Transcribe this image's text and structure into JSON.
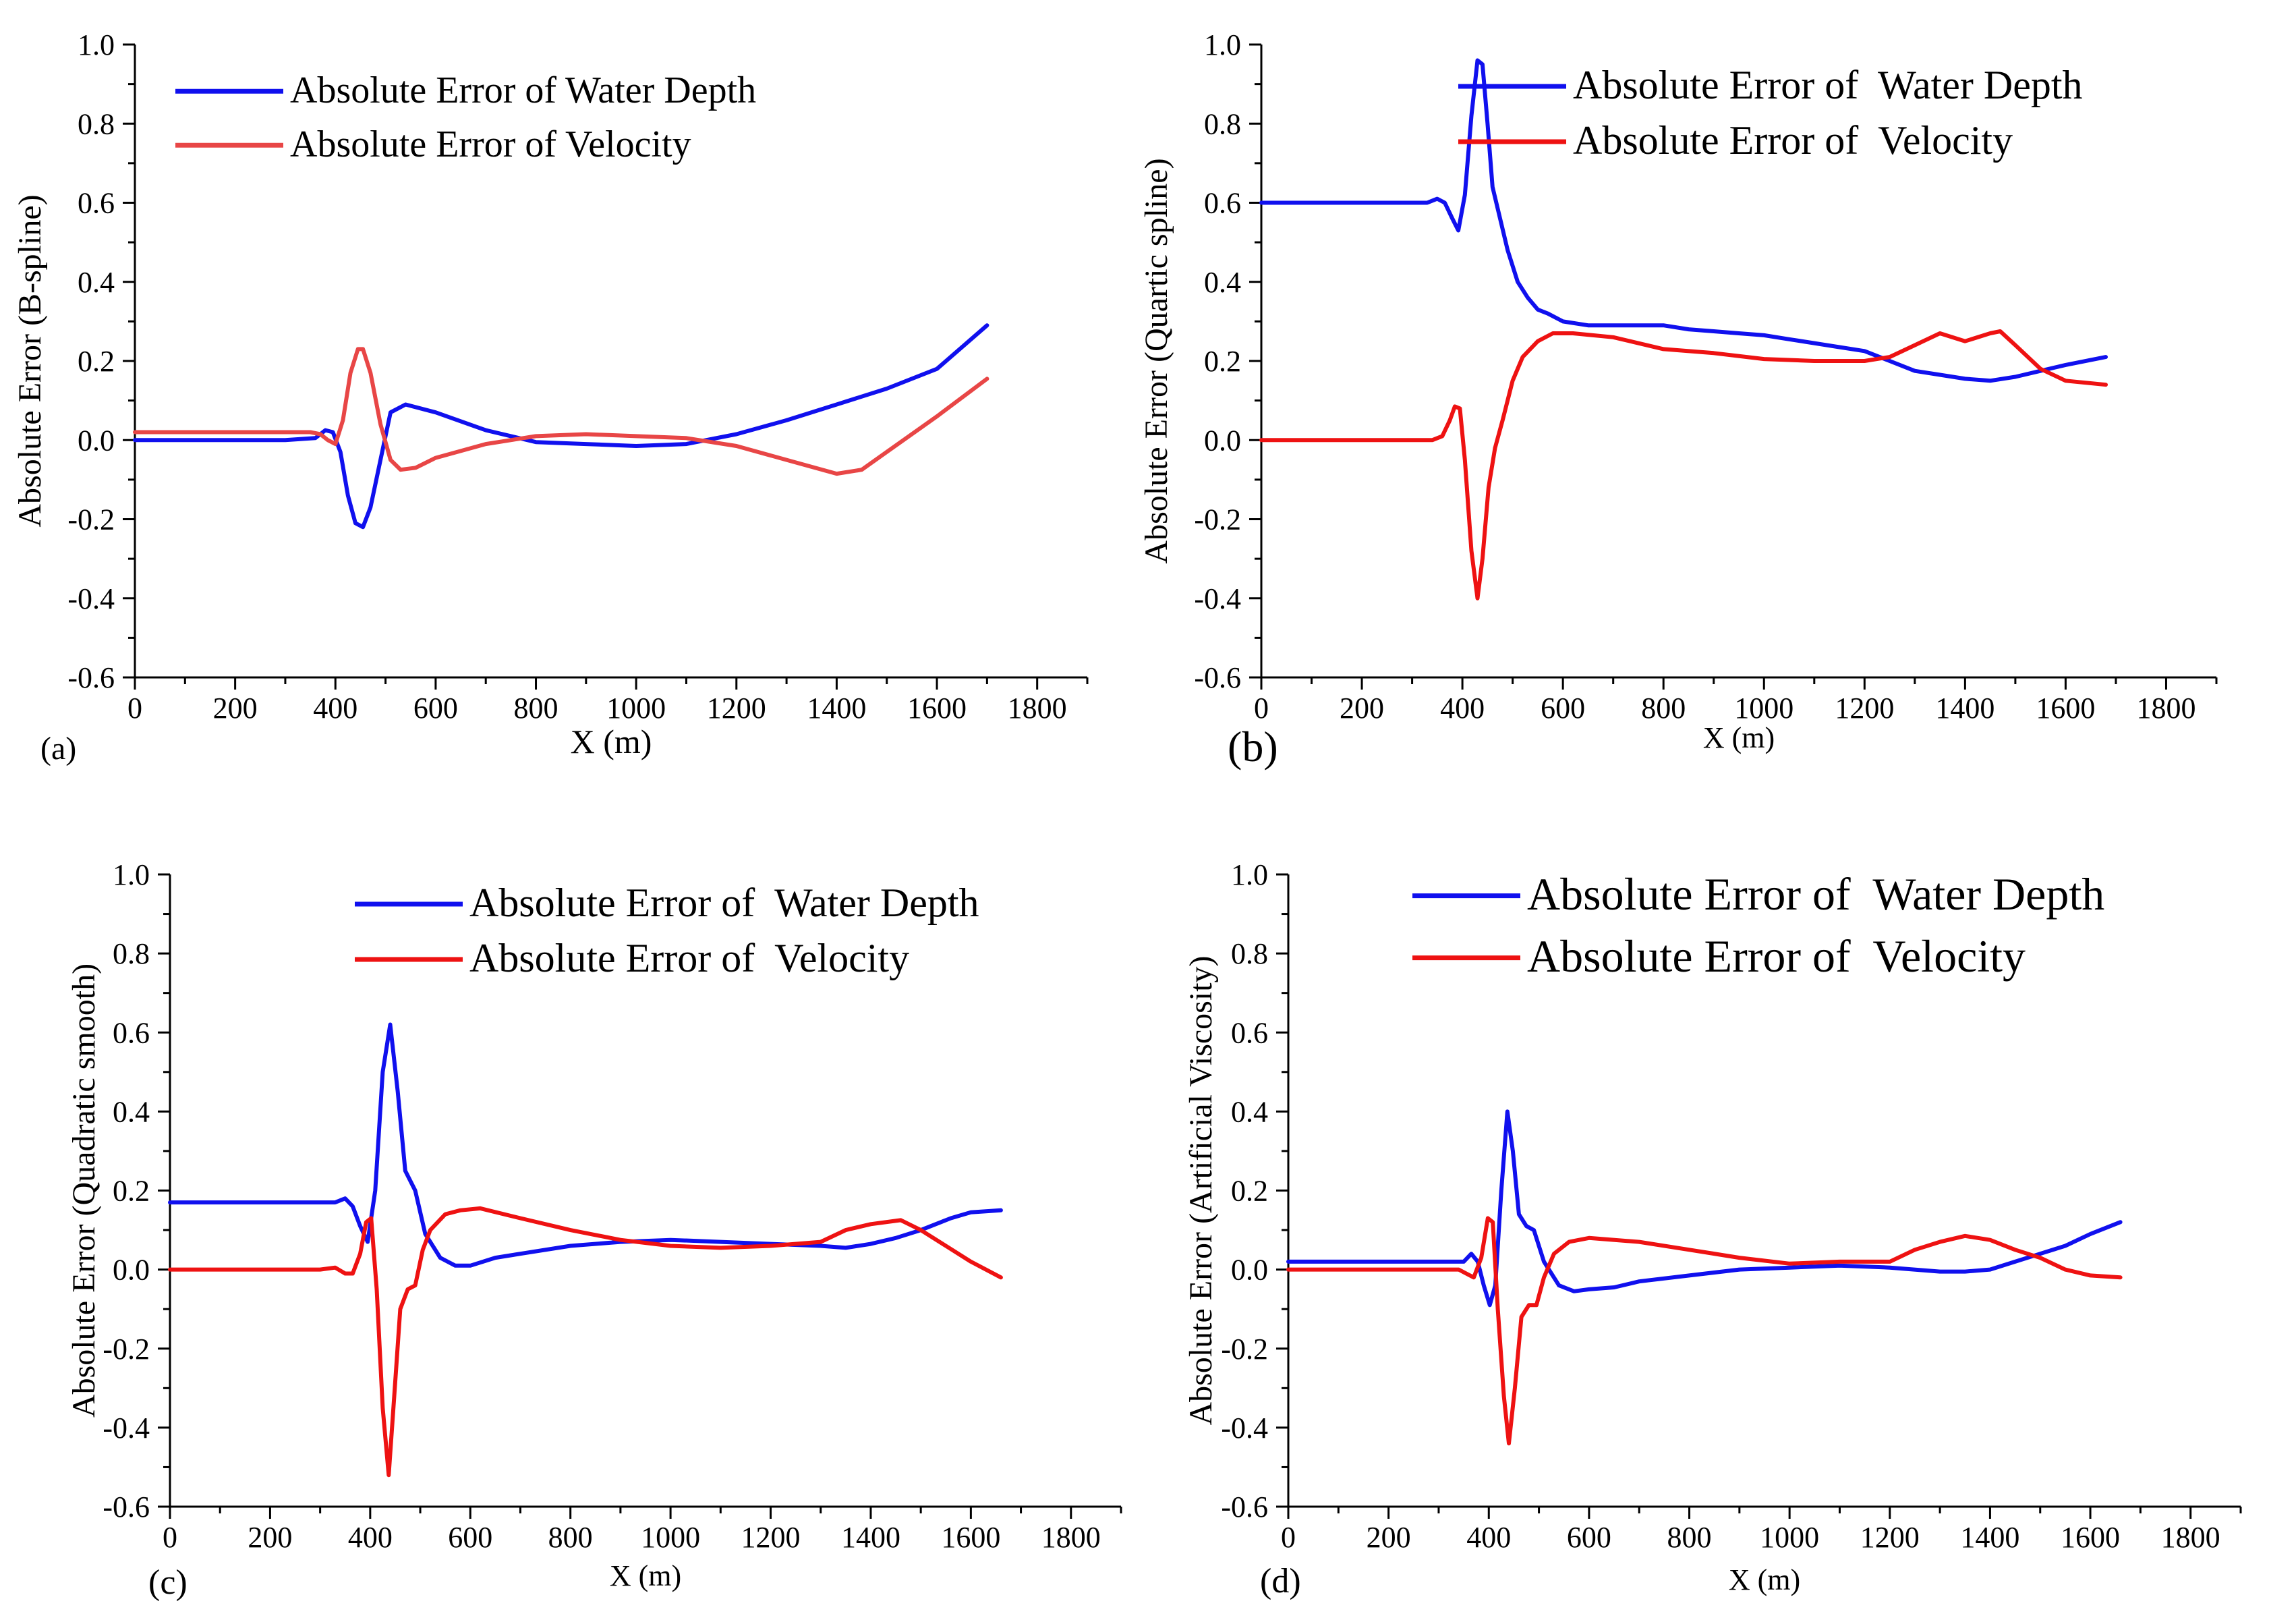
{
  "colors": {
    "blue": "#1010ee",
    "red_a": "#e84646",
    "red": "#ee1212",
    "axis": "#000000"
  },
  "charts": [
    {
      "panel_label": "(a)",
      "chart_data": {
        "type": "line",
        "title": "",
        "xlabel": "X (m)",
        "ylabel": "Absolute Error (B-spline)",
        "xlim": [
          0,
          1900
        ],
        "ylim": [
          -0.6,
          1.0
        ],
        "xticks": [
          0,
          200,
          400,
          600,
          800,
          1000,
          1200,
          1400,
          1600,
          1800
        ],
        "yticks": [
          -0.6,
          -0.4,
          -0.2,
          0.0,
          0.2,
          0.4,
          0.6,
          0.8,
          1.0
        ],
        "legend_position": "top-right",
        "series": [
          {
            "name": "Absolute Error of Water Depth",
            "color": "#1010ee",
            "x": [
              0,
              300,
              360,
              380,
              395,
              410,
              425,
              440,
              455,
              470,
              490,
              510,
              540,
              600,
              700,
              800,
              900,
              1000,
              1100,
              1200,
              1300,
              1400,
              1500,
              1600,
              1700
            ],
            "y": [
              0.0,
              0.0,
              0.005,
              0.025,
              0.02,
              -0.03,
              -0.14,
              -0.21,
              -0.22,
              -0.17,
              -0.05,
              0.07,
              0.09,
              0.07,
              0.025,
              -0.005,
              -0.01,
              -0.015,
              -0.01,
              0.015,
              0.05,
              0.09,
              0.13,
              0.18,
              0.29
            ]
          },
          {
            "name": "Absolute Error of Velocity",
            "color": "#e84646",
            "x": [
              0,
              300,
              350,
              370,
              385,
              400,
              415,
              430,
              445,
              455,
              470,
              490,
              510,
              530,
              560,
              600,
              700,
              800,
              900,
              1000,
              1100,
              1200,
              1300,
              1400,
              1450,
              1500,
              1600,
              1700
            ],
            "y": [
              0.02,
              0.02,
              0.02,
              0.015,
              0.0,
              -0.01,
              0.05,
              0.17,
              0.23,
              0.23,
              0.17,
              0.04,
              -0.05,
              -0.075,
              -0.07,
              -0.045,
              -0.01,
              0.01,
              0.015,
              0.01,
              0.005,
              -0.015,
              -0.05,
              -0.085,
              -0.075,
              -0.03,
              0.06,
              0.155
            ]
          }
        ]
      }
    },
    {
      "panel_label": "(b)",
      "chart_data": {
        "type": "line",
        "title": "",
        "xlabel": "X (m)",
        "ylabel": "Absolute Error (Quartic spline)",
        "xlim": [
          0,
          1900
        ],
        "ylim": [
          -0.6,
          1.0
        ],
        "xticks": [
          0,
          200,
          400,
          600,
          800,
          1000,
          1200,
          1400,
          1600,
          1800
        ],
        "yticks": [
          -0.6,
          -0.4,
          -0.2,
          0.0,
          0.2,
          0.4,
          0.6,
          0.8,
          1.0
        ],
        "legend_position": "top-right",
        "series": [
          {
            "name": "Absolute Error of  Water Depth",
            "color": "#1010ee",
            "x": [
              0,
              300,
              330,
              350,
              365,
              380,
              392,
              405,
              418,
              430,
              440,
              450,
              460,
              475,
              490,
              510,
              530,
              550,
              570,
              600,
              650,
              700,
              750,
              800,
              850,
              900,
              950,
              1000,
              1050,
              1100,
              1150,
              1200,
              1250,
              1300,
              1350,
              1400,
              1450,
              1500,
              1550,
              1600,
              1680
            ],
            "y": [
              0.6,
              0.6,
              0.6,
              0.61,
              0.6,
              0.56,
              0.53,
              0.62,
              0.82,
              0.96,
              0.95,
              0.8,
              0.64,
              0.56,
              0.48,
              0.4,
              0.36,
              0.33,
              0.32,
              0.3,
              0.29,
              0.29,
              0.29,
              0.29,
              0.28,
              0.275,
              0.27,
              0.265,
              0.255,
              0.245,
              0.235,
              0.225,
              0.2,
              0.175,
              0.165,
              0.155,
              0.15,
              0.16,
              0.175,
              0.19,
              0.21
            ]
          },
          {
            "name": "Absolute Error of  Velocity",
            "color": "#ee1212",
            "x": [
              0,
              300,
              340,
              360,
              375,
              385,
              395,
              405,
              418,
              430,
              440,
              452,
              465,
              480,
              500,
              520,
              550,
              580,
              620,
              700,
              800,
              900,
              1000,
              1100,
              1200,
              1250,
              1300,
              1350,
              1400,
              1450,
              1470,
              1500,
              1550,
              1600,
              1680
            ],
            "y": [
              0.0,
              0.0,
              0.0,
              0.01,
              0.05,
              0.085,
              0.08,
              -0.05,
              -0.28,
              -0.4,
              -0.3,
              -0.12,
              -0.02,
              0.05,
              0.15,
              0.21,
              0.25,
              0.27,
              0.27,
              0.26,
              0.23,
              0.22,
              0.205,
              0.2,
              0.2,
              0.21,
              0.24,
              0.27,
              0.25,
              0.27,
              0.275,
              0.24,
              0.18,
              0.15,
              0.14
            ]
          }
        ]
      }
    },
    {
      "panel_label": "(c)",
      "chart_data": {
        "type": "line",
        "title": "",
        "xlabel": "X (m)",
        "ylabel": "Absolute Error (Quadratic smooth)",
        "xlim": [
          0,
          1900
        ],
        "ylim": [
          -0.6,
          1.0
        ],
        "xticks": [
          0,
          200,
          400,
          600,
          800,
          1000,
          1200,
          1400,
          1600,
          1800
        ],
        "yticks": [
          -0.6,
          -0.4,
          -0.2,
          0.0,
          0.2,
          0.4,
          0.6,
          0.8,
          1.0
        ],
        "legend_position": "top-right",
        "series": [
          {
            "name": "Absolute Error of  Water Depth",
            "color": "#1010ee",
            "x": [
              0,
              300,
              330,
              350,
              365,
              380,
              395,
              410,
              425,
              440,
              455,
              470,
              490,
              510,
              540,
              570,
              600,
              650,
              700,
              800,
              900,
              1000,
              1100,
              1200,
              1300,
              1350,
              1400,
              1450,
              1500,
              1560,
              1600,
              1660
            ],
            "y": [
              0.17,
              0.17,
              0.17,
              0.18,
              0.16,
              0.11,
              0.07,
              0.2,
              0.5,
              0.62,
              0.45,
              0.25,
              0.2,
              0.09,
              0.03,
              0.01,
              0.01,
              0.03,
              0.04,
              0.06,
              0.07,
              0.075,
              0.07,
              0.065,
              0.06,
              0.055,
              0.065,
              0.08,
              0.1,
              0.13,
              0.145,
              0.15
            ]
          },
          {
            "name": "Absolute Error of  Velocity",
            "color": "#ee1212",
            "x": [
              0,
              300,
              330,
              350,
              365,
              380,
              392,
              402,
              413,
              425,
              437,
              448,
              460,
              475,
              490,
              505,
              520,
              550,
              580,
              620,
              700,
              800,
              900,
              1000,
              1100,
              1200,
              1300,
              1350,
              1400,
              1460,
              1500,
              1550,
              1600,
              1660
            ],
            "y": [
              0.0,
              0.0,
              0.005,
              -0.01,
              -0.01,
              0.04,
              0.12,
              0.13,
              -0.05,
              -0.35,
              -0.52,
              -0.32,
              -0.1,
              -0.05,
              -0.04,
              0.05,
              0.1,
              0.14,
              0.15,
              0.155,
              0.13,
              0.1,
              0.075,
              0.06,
              0.055,
              0.06,
              0.07,
              0.1,
              0.115,
              0.125,
              0.1,
              0.06,
              0.02,
              -0.02
            ]
          }
        ]
      }
    },
    {
      "panel_label": "(d)",
      "chart_data": {
        "type": "line",
        "title": "",
        "xlabel": "X (m)",
        "ylabel": "Absolute Error (Artificial Viscosity)",
        "xlim": [
          0,
          1900
        ],
        "ylim": [
          -0.6,
          1.0
        ],
        "xticks": [
          0,
          200,
          400,
          600,
          800,
          1000,
          1200,
          1400,
          1600,
          1800
        ],
        "yticks": [
          -0.6,
          -0.4,
          -0.2,
          0.0,
          0.2,
          0.4,
          0.6,
          0.8,
          1.0
        ],
        "legend_position": "top-right",
        "series": [
          {
            "name": "Absolute Error of  Water Depth",
            "color": "#1010ee",
            "x": [
              0,
              300,
              330,
              350,
              365,
              378,
              390,
              402,
              413,
              425,
              437,
              448,
              460,
              475,
              490,
              510,
              540,
              570,
              600,
              650,
              700,
              800,
              900,
              1000,
              1100,
              1200,
              1300,
              1350,
              1400,
              1450,
              1500,
              1550,
              1600,
              1660
            ],
            "y": [
              0.02,
              0.02,
              0.02,
              0.02,
              0.04,
              0.02,
              -0.04,
              -0.09,
              -0.04,
              0.2,
              0.4,
              0.3,
              0.14,
              0.11,
              0.1,
              0.02,
              -0.04,
              -0.055,
              -0.05,
              -0.045,
              -0.03,
              -0.015,
              0.0,
              0.005,
              0.01,
              0.005,
              -0.005,
              -0.005,
              0.0,
              0.02,
              0.04,
              0.06,
              0.09,
              0.12
            ]
          },
          {
            "name": "Absolute Error of  Velocity",
            "color": "#ee1212",
            "x": [
              0,
              300,
              340,
              355,
              370,
              385,
              398,
              408,
              418,
              430,
              440,
              452,
              465,
              480,
              495,
              510,
              530,
              560,
              600,
              700,
              800,
              900,
              1000,
              1100,
              1200,
              1250,
              1300,
              1350,
              1400,
              1450,
              1500,
              1550,
              1600,
              1660
            ],
            "y": [
              0.0,
              0.0,
              0.0,
              -0.01,
              -0.02,
              0.03,
              0.13,
              0.12,
              -0.1,
              -0.32,
              -0.44,
              -0.3,
              -0.12,
              -0.09,
              -0.09,
              -0.02,
              0.04,
              0.07,
              0.08,
              0.07,
              0.05,
              0.03,
              0.015,
              0.02,
              0.02,
              0.05,
              0.07,
              0.085,
              0.075,
              0.05,
              0.03,
              0.0,
              -0.015,
              -0.02
            ]
          }
        ]
      }
    }
  ]
}
